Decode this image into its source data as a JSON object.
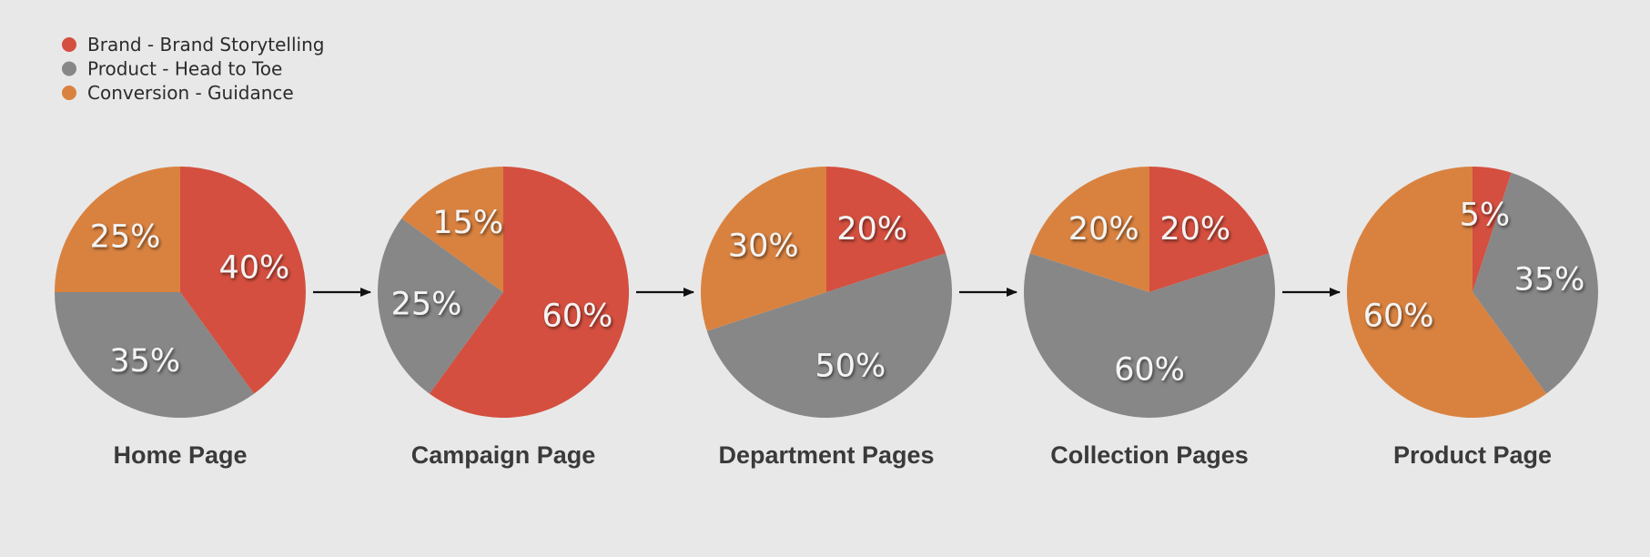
{
  "chart_data": {
    "type": "pie",
    "legend": {
      "placement": "top-left",
      "entries": [
        {
          "key": "brand",
          "label": "Brand - Brand Storytelling",
          "color": "#d44f3f"
        },
        {
          "key": "product",
          "label": "Product - Head to Toe",
          "color": "#878787"
        },
        {
          "key": "conversion",
          "label": "Conversion - Guidance",
          "color": "#d98240"
        }
      ]
    },
    "pies": [
      {
        "title": "Home Page",
        "slices": [
          {
            "key": "brand",
            "value": 40,
            "label": "40%"
          },
          {
            "key": "product",
            "value": 35,
            "label": "35%"
          },
          {
            "key": "conversion",
            "value": 25,
            "label": "25%"
          }
        ]
      },
      {
        "title": "Campaign Page",
        "slices": [
          {
            "key": "brand",
            "value": 60,
            "label": "60%"
          },
          {
            "key": "product",
            "value": 25,
            "label": "25%"
          },
          {
            "key": "conversion",
            "value": 15,
            "label": "15%"
          }
        ]
      },
      {
        "title": "Department Pages",
        "slices": [
          {
            "key": "brand",
            "value": 20,
            "label": "20%"
          },
          {
            "key": "product",
            "value": 50,
            "label": "50%"
          },
          {
            "key": "conversion",
            "value": 30,
            "label": "30%"
          }
        ]
      },
      {
        "title": "Collection Pages",
        "slices": [
          {
            "key": "brand",
            "value": 20,
            "label": "20%"
          },
          {
            "key": "product",
            "value": 60,
            "label": "60%"
          },
          {
            "key": "conversion",
            "value": 20,
            "label": "20%"
          }
        ]
      },
      {
        "title": "Product Page",
        "slices": [
          {
            "key": "brand",
            "value": 5,
            "label": "5%"
          },
          {
            "key": "product",
            "value": 35,
            "label": "35%"
          },
          {
            "key": "conversion",
            "value": 60,
            "label": "60%"
          }
        ]
      }
    ],
    "connectors": "arrow"
  }
}
